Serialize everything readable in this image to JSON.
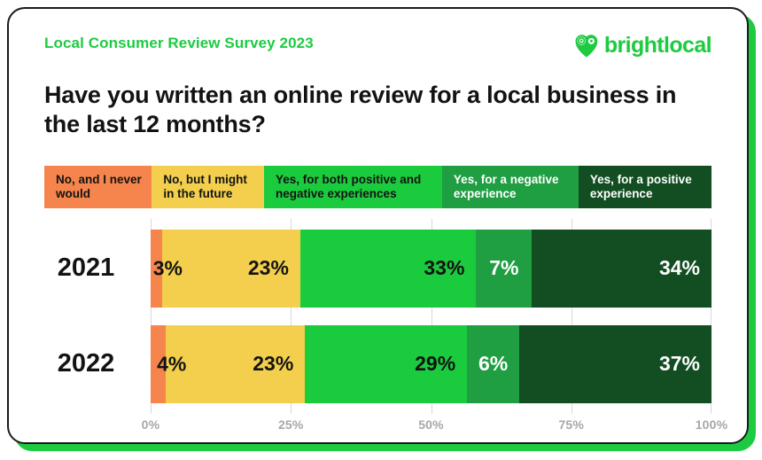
{
  "header": {
    "survey_label": "Local Consumer Review Survey 2023",
    "brand_name": "brightlocal"
  },
  "title": "Have you written an online review for a local business in the last 12 months?",
  "chart_data": {
    "type": "bar",
    "variant": "horizontal-stacked",
    "title": "Have you written an online review for a local business in the last 12 months?",
    "categories": [
      "2021",
      "2022"
    ],
    "series": [
      {
        "name": "No, and I never would",
        "color": "#F5854C",
        "text_color": "#131313",
        "label_align": "overflow-right",
        "values": [
          3,
          4
        ]
      },
      {
        "name": "No, but I might in the future",
        "color": "#F3CF4D",
        "text_color": "#131313",
        "label_align": "right",
        "values": [
          23,
          23
        ]
      },
      {
        "name": "Yes, for both positive and negative experiences",
        "color": "#1BCB3E",
        "text_color": "#131313",
        "label_align": "right",
        "values": [
          33,
          29
        ]
      },
      {
        "name": "Yes, for a negative experience",
        "color": "#1F9E42",
        "text_color": "#FFFFFF",
        "label_align": "center",
        "values": [
          7,
          6
        ]
      },
      {
        "name": "Yes, for a positive experience",
        "color": "#124E21",
        "text_color": "#FFFFFF",
        "label_align": "right",
        "values": [
          34,
          37
        ]
      }
    ],
    "x_ticks": [
      "0%",
      "25%",
      "50%",
      "75%",
      "100%"
    ],
    "xlim": [
      0,
      100
    ],
    "value_suffix": "%",
    "grid": true,
    "legend_position": "top"
  },
  "colors": {
    "brand_green": "#1DCB41",
    "grid_line": "#D8D8D8",
    "tick_text": "#A7A7A7",
    "card_border": "#1A1A1A",
    "title_text": "#131313"
  }
}
